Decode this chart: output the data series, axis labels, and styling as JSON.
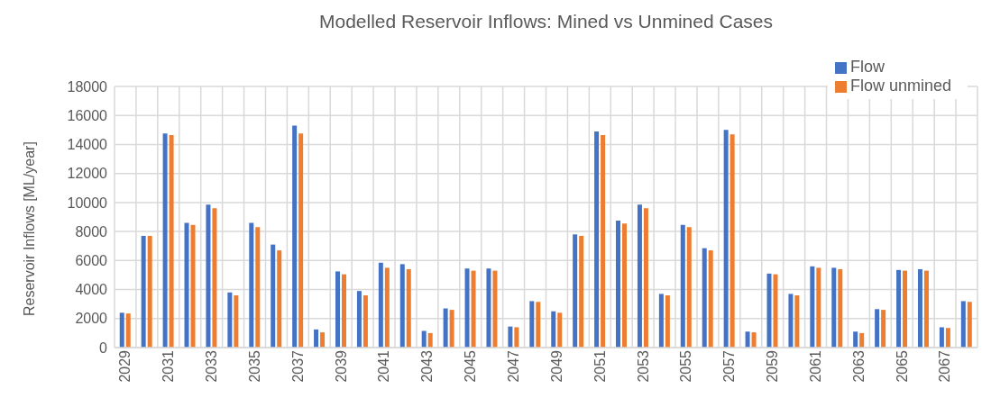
{
  "chart_data": {
    "type": "bar",
    "title": "Modelled Reservoir Inflows: Mined vs Unmined Cases",
    "ylabel": "Reservoir Inflows [ML/year]",
    "categories": [
      "2029",
      null,
      "2031",
      null,
      "2033",
      null,
      "2035",
      null,
      "2037",
      null,
      "2039",
      null,
      "2041",
      null,
      "2043",
      null,
      "2045",
      null,
      "2047",
      null,
      "2049",
      null,
      "2051",
      null,
      "2053",
      null,
      "2055",
      null,
      "2057",
      null,
      "2059",
      null,
      "2061",
      null,
      "2063",
      null,
      "2065",
      null,
      "2067",
      null
    ],
    "series": [
      {
        "name": "Flow",
        "color": "#4472c4",
        "values": [
          2400,
          7700,
          14750,
          8600,
          9850,
          3800,
          8600,
          7100,
          15300,
          1250,
          5250,
          3900,
          5850,
          5750,
          1150,
          2700,
          5450,
          5450,
          1450,
          3200,
          2500,
          7800,
          14900,
          8750,
          9850,
          3700,
          8450,
          6850,
          15000,
          1100,
          5100,
          3700,
          5600,
          5500,
          1100,
          2650,
          5350,
          5400,
          1400,
          3200
        ]
      },
      {
        "name": "Flow unmined",
        "color": "#ed7d31",
        "values": [
          2350,
          7700,
          14650,
          8450,
          9600,
          3600,
          8300,
          6700,
          14750,
          1050,
          5050,
          3600,
          5500,
          5400,
          1000,
          2600,
          5300,
          5300,
          1400,
          3150,
          2400,
          7700,
          14650,
          8550,
          9600,
          3600,
          8300,
          6700,
          14700,
          1050,
          5050,
          3600,
          5500,
          5400,
          1000,
          2600,
          5300,
          5300,
          1350,
          3150
        ]
      }
    ],
    "ylim": [
      0,
      18000
    ],
    "yticks": [
      0,
      2000,
      4000,
      6000,
      8000,
      10000,
      12000,
      14000,
      16000,
      18000
    ],
    "grid": true,
    "legend": "top right"
  }
}
